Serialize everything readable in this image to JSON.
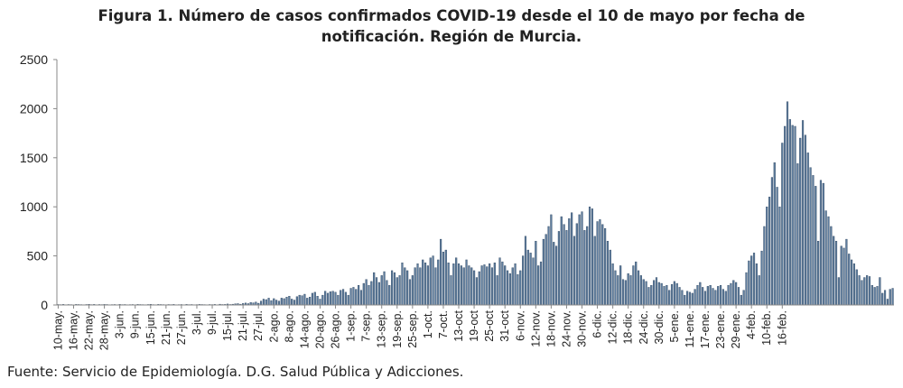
{
  "chart_data": {
    "type": "bar",
    "title_line1": "Figura 1. Número de casos confirmados COVID-19 desde el 10 de mayo por fecha de",
    "title_line2": "notificación. Región de Murcia.",
    "xlabel": "",
    "ylabel": "",
    "ylim": [
      0,
      2500
    ],
    "yticks": [
      0,
      500,
      1000,
      1500,
      2000,
      2500
    ],
    "grid": false,
    "legend": "none",
    "bar_color": "#5e7d9e",
    "bar_edge_color": "#2e4560",
    "start_date": "2020-05-10",
    "xtick_labels": [
      "10-may.",
      "16-may.",
      "22-may.",
      "28-may.",
      "3-jun.",
      "9-jun.",
      "15-jun.",
      "21-jun.",
      "27-jun.",
      "3-jul.",
      "9-jul.",
      "15-jul.",
      "21-jul.",
      "27-jul.",
      "2-ago.",
      "8-ago.",
      "14-ago.",
      "20-ago.",
      "26-ago.",
      "1-sep.",
      "7-sep.",
      "13-sep.",
      "19-sep.",
      "25-sep.",
      "1-oct.",
      "7-oct.",
      "13-oct",
      "19-oct",
      "25-oct",
      "31-oct",
      "6-nov.",
      "12-nov.",
      "18-nov.",
      "24-nov.",
      "30-nov.",
      "6-dic.",
      "12-dic.",
      "18-dic.",
      "24-dic.",
      "30-dic.",
      "5-ene.",
      "11-ene.",
      "17-ene.",
      "23-ene.",
      "29-ene.",
      "4-feb.",
      "10-feb.",
      "16-feb."
    ],
    "values": [
      5,
      4,
      6,
      3,
      5,
      4,
      2,
      6,
      5,
      4,
      3,
      5,
      7,
      4,
      6,
      3,
      5,
      4,
      6,
      5,
      3,
      4,
      5,
      3,
      6,
      4,
      5,
      3,
      4,
      5,
      3,
      6,
      5,
      4,
      3,
      5,
      7,
      4,
      3,
      6,
      5,
      4,
      3,
      5,
      4,
      6,
      3,
      4,
      5,
      3,
      6,
      4,
      5,
      3,
      4,
      6,
      5,
      4,
      3,
      5,
      4,
      6,
      3,
      8,
      5,
      6,
      10,
      5,
      8,
      12,
      14,
      8,
      15,
      20,
      14,
      25,
      22,
      30,
      18,
      40,
      60,
      55,
      70,
      45,
      65,
      50,
      40,
      70,
      65,
      80,
      90,
      60,
      50,
      85,
      100,
      95,
      110,
      70,
      80,
      120,
      130,
      90,
      60,
      100,
      140,
      120,
      135,
      140,
      130,
      100,
      150,
      160,
      130,
      100,
      170,
      180,
      160,
      200,
      150,
      220,
      260,
      200,
      240,
      330,
      280,
      230,
      300,
      340,
      250,
      200,
      350,
      330,
      280,
      300,
      430,
      380,
      350,
      260,
      300,
      380,
      420,
      380,
      460,
      430,
      400,
      480,
      500,
      380,
      460,
      670,
      540,
      560,
      430,
      300,
      420,
      480,
      420,
      400,
      380,
      460,
      400,
      380,
      350,
      280,
      340,
      400,
      410,
      390,
      420,
      380,
      430,
      300,
      480,
      440,
      400,
      350,
      320,
      380,
      420,
      310,
      350,
      500,
      700,
      560,
      530,
      480,
      650,
      400,
      440,
      670,
      720,
      800,
      920,
      640,
      600,
      750,
      900,
      820,
      760,
      880,
      940,
      700,
      830,
      920,
      950,
      760,
      800,
      1000,
      980,
      700,
      850,
      870,
      820,
      780,
      650,
      560,
      420,
      350,
      300,
      400,
      260,
      250,
      320,
      300,
      400,
      440,
      350,
      300,
      260,
      240,
      180,
      200,
      250,
      280,
      230,
      220,
      190,
      200,
      150,
      210,
      240,
      220,
      180,
      150,
      100,
      140,
      130,
      120,
      160,
      200,
      230,
      180,
      140,
      190,
      200,
      170,
      150,
      190,
      200,
      160,
      140,
      200,
      220,
      250,
      230,
      180,
      100,
      150,
      330,
      450,
      500,
      530,
      420,
      300,
      550,
      800,
      1000,
      1100,
      1300,
      1450,
      1200,
      1000,
      1650,
      1820,
      2070,
      1890,
      1830,
      1820,
      1440,
      1700,
      1880,
      1730,
      1550,
      1400,
      1320,
      1210,
      650,
      1270,
      1240,
      960,
      900,
      800,
      700,
      650,
      280,
      600,
      580,
      670,
      520,
      460,
      420,
      360,
      300,
      250,
      280,
      300,
      290,
      200,
      180,
      190,
      280,
      120,
      150,
      60,
      160,
      170
    ],
    "source": "Fuente: Servicio de Epidemiología. D.G. Salud Pública y Adicciones."
  }
}
